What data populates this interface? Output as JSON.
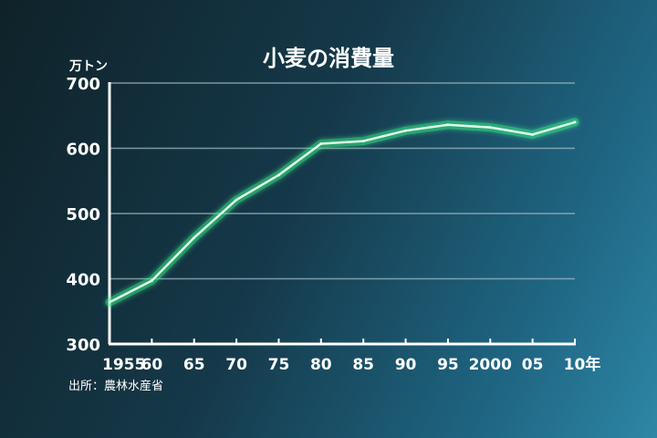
{
  "chart_data": {
    "type": "line",
    "title": "小麦の消費量",
    "ylabel": "万トン",
    "source": "出所：農林水産省",
    "x_tick_labels": [
      "1955",
      "60",
      "65",
      "70",
      "75",
      "80",
      "85",
      "90",
      "95",
      "2000",
      "05",
      "10年"
    ],
    "x": [
      1955,
      1960,
      1965,
      1970,
      1975,
      1980,
      1985,
      1990,
      1995,
      2000,
      2005,
      2010
    ],
    "y_ticks": [
      300,
      400,
      500,
      600,
      700
    ],
    "ylim": [
      300,
      700
    ],
    "grid": true,
    "line_color": "#3cf08c",
    "series": [
      {
        "values": [
          364,
          397,
          463,
          521,
          559,
          607,
          611,
          627,
          636,
          632,
          621,
          640
        ]
      }
    ]
  }
}
